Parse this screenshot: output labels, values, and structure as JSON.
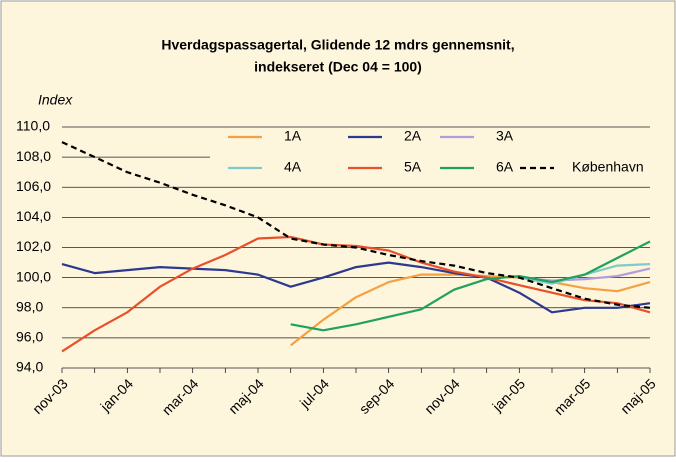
{
  "chart_data": {
    "type": "line",
    "title": [
      "Hverdagspassagertal, Glidende 12 mdrs gennemsnit,",
      "indekseret (Dec 04 = 100)"
    ],
    "ylabel": "Index",
    "categories": [
      "nov-03",
      null,
      "jan-04",
      null,
      "mar-04",
      null,
      "maj-04",
      null,
      "jul-04",
      null,
      "sep-04",
      null,
      "nov-04",
      null,
      "jan-05",
      null,
      "mar-05",
      null,
      "maj-05"
    ],
    "ylim": [
      94,
      110
    ],
    "yticks": [
      {
        "value": 94,
        "label": "94,0"
      },
      {
        "value": 96,
        "label": "96,0"
      },
      {
        "value": 98,
        "label": "98,0"
      },
      {
        "value": 100,
        "label": "100,0"
      },
      {
        "value": 102,
        "label": "102,0"
      },
      {
        "value": 104,
        "label": "104,0"
      },
      {
        "value": 106,
        "label": "106,0"
      },
      {
        "value": 108,
        "label": "108,0"
      },
      {
        "value": 110,
        "label": "110,0"
      }
    ],
    "grid": true,
    "series": [
      {
        "name": "1A",
        "color": "#f5a042",
        "values": [
          null,
          null,
          null,
          null,
          null,
          null,
          null,
          95.5,
          97.2,
          98.7,
          99.7,
          100.2,
          100.2,
          100.1,
          100.0,
          99.7,
          99.3,
          99.1,
          99.7
        ]
      },
      {
        "name": "2A",
        "color": "#2b3990",
        "values": [
          100.9,
          100.3,
          100.5,
          100.7,
          100.6,
          100.5,
          100.2,
          99.4,
          100.0,
          100.7,
          101.0,
          100.7,
          100.3,
          100.0,
          99.0,
          97.7,
          98.0,
          98.0,
          98.3
        ]
      },
      {
        "name": "3A",
        "color": "#b39ddb",
        "values": [
          null,
          null,
          null,
          null,
          null,
          null,
          null,
          null,
          null,
          null,
          null,
          null,
          null,
          null,
          100.0,
          99.8,
          99.9,
          100.1,
          100.6
        ]
      },
      {
        "name": "4A",
        "color": "#7fcaca",
        "values": [
          null,
          null,
          null,
          null,
          null,
          null,
          null,
          null,
          null,
          null,
          null,
          null,
          null,
          null,
          100.0,
          99.6,
          100.2,
          100.8,
          100.9
        ]
      },
      {
        "name": "5A",
        "color": "#e8502a",
        "values": [
          95.1,
          96.5,
          97.7,
          99.4,
          100.6,
          101.5,
          102.6,
          102.7,
          102.2,
          102.1,
          101.8,
          101.0,
          100.4,
          100.0,
          99.5,
          99.0,
          98.5,
          98.3,
          97.7
        ]
      },
      {
        "name": "6A",
        "color": "#1fa25f",
        "values": [
          null,
          null,
          null,
          null,
          null,
          null,
          null,
          96.9,
          96.5,
          96.9,
          97.4,
          97.9,
          99.2,
          99.9,
          100.1,
          99.7,
          100.2,
          101.3,
          102.4
        ]
      },
      {
        "name": "København",
        "color": "#000000",
        "dashed": true,
        "values": [
          109.0,
          108.0,
          107.0,
          106.3,
          105.5,
          104.8,
          104.0,
          102.6,
          102.2,
          102.0,
          101.5,
          101.1,
          100.8,
          100.3,
          100.0,
          99.3,
          98.6,
          98.2,
          98.0
        ]
      }
    ]
  }
}
